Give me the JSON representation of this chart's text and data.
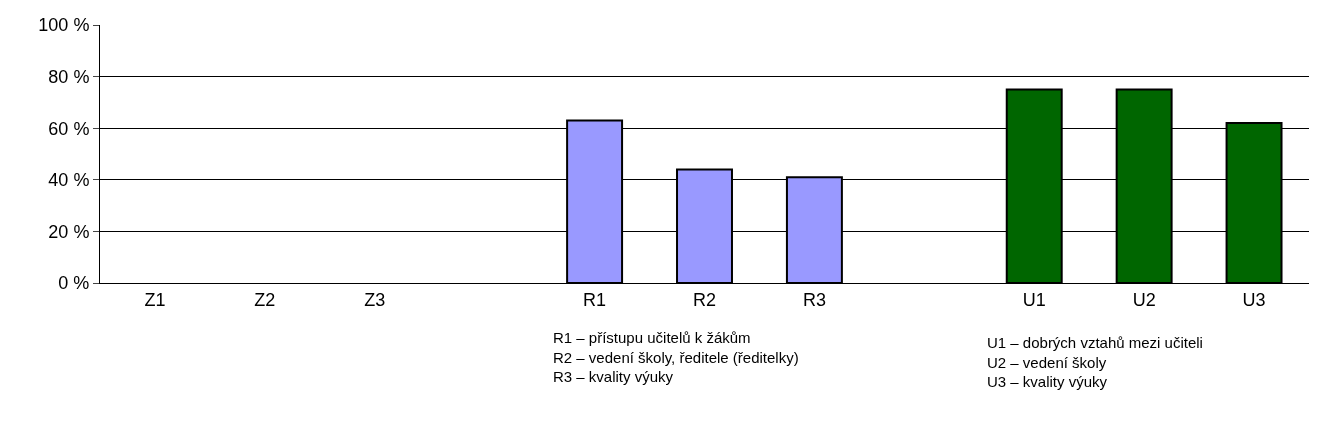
{
  "chart_data": {
    "type": "bar",
    "categories": [
      "Z1",
      "Z2",
      "Z3",
      null,
      "R1",
      "R2",
      "R3",
      null,
      "U1",
      "U2",
      "U3"
    ],
    "values": [
      null,
      null,
      null,
      null,
      63,
      44,
      41,
      null,
      75,
      75,
      62
    ],
    "colors": [
      "#9999ff",
      "#9999ff",
      "#9999ff",
      "#9999ff",
      "#9999ff",
      "#9999ff",
      "#9999ff",
      "#006600",
      "#006600",
      "#006600",
      "#006600"
    ],
    "ylim": [
      0,
      100
    ],
    "yticks": [
      {
        "value": 0,
        "label": "0 %"
      },
      {
        "value": 20,
        "label": "20 %"
      },
      {
        "value": 40,
        "label": "40 %"
      },
      {
        "value": 60,
        "label": "60 %"
      },
      {
        "value": 80,
        "label": "80 %"
      },
      {
        "value": 100,
        "label": "100 %"
      }
    ],
    "grid": "y",
    "legend": false,
    "annotations": [
      "R1 – přístupu učitelů k žákům\nR2 – vedení školy, ředitele (ředitelky)\nR3 – kvality výuky",
      "U1 – dobrých vztahů mezi učiteli\nU2 – vedení školy\nU3 – kvality výuky"
    ]
  }
}
